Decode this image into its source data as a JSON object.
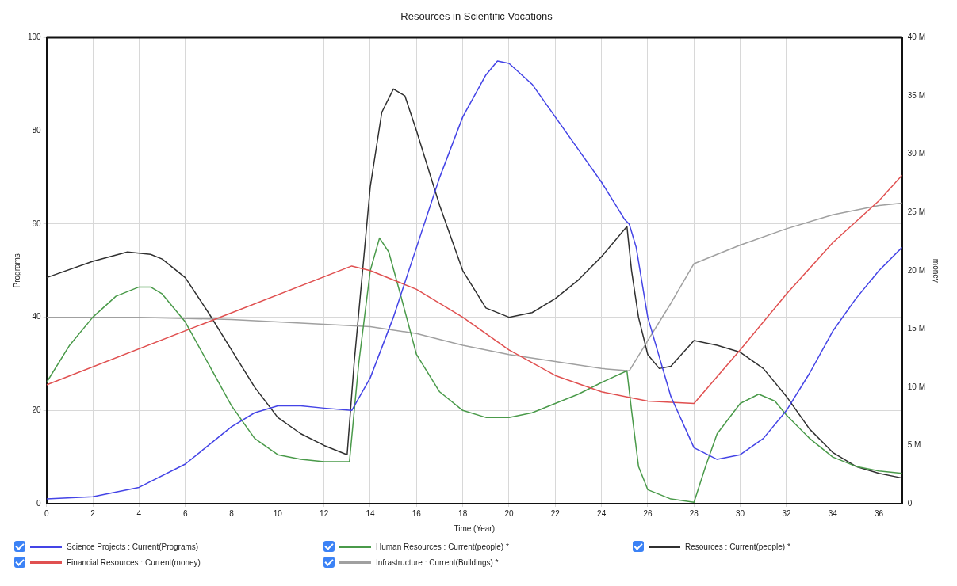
{
  "chart_data": {
    "type": "line",
    "title": "Resources in Scientific Vocations",
    "xlabel": "Time (Year)",
    "ylabel": "Programs",
    "y2label": "money",
    "xlim": [
      0,
      37
    ],
    "xticks": [
      0,
      2,
      4,
      6,
      8,
      10,
      12,
      14,
      16,
      18,
      20,
      22,
      24,
      26,
      28,
      30,
      32,
      34,
      36
    ],
    "ylim": [
      0,
      100
    ],
    "yticks": [
      0,
      20,
      40,
      60,
      80,
      100
    ],
    "y2lim": [
      0,
      40000000
    ],
    "y2ticks": [
      {
        "value": 0,
        "label": "0"
      },
      {
        "value": 5000000,
        "label": "5 M"
      },
      {
        "value": 10000000,
        "label": "10 M"
      },
      {
        "value": 15000000,
        "label": "15 M"
      },
      {
        "value": 20000000,
        "label": "20 M"
      },
      {
        "value": 25000000,
        "label": "25 M"
      },
      {
        "value": 30000000,
        "label": "30 M"
      },
      {
        "value": 35000000,
        "label": "35 M"
      },
      {
        "value": 40000000,
        "label": "40 M"
      }
    ],
    "grid": true,
    "legend": "bottom",
    "marker": "none",
    "line_style": "solid",
    "series": [
      {
        "name": "Science Projects : Current(Programs)",
        "color": "#4444e6",
        "x": [
          0,
          2,
          4,
          6,
          8,
          9,
          10,
          11,
          12,
          13.2,
          14,
          15,
          16,
          17,
          18,
          19,
          19.5,
          20,
          21,
          22,
          23,
          24,
          25,
          25.2,
          25.5,
          26,
          27,
          28,
          29,
          30,
          31,
          32,
          33,
          34,
          35,
          36,
          37
        ],
        "values": [
          1,
          1.5,
          3.5,
          8.5,
          16.5,
          19.5,
          21,
          21,
          20.5,
          20,
          27,
          40,
          55,
          70,
          83,
          92,
          95,
          94.5,
          90,
          83,
          76,
          69,
          61,
          60,
          55,
          40,
          23,
          12,
          9.5,
          10.5,
          14,
          20,
          28,
          37,
          44,
          50,
          55
        ]
      },
      {
        "name": "Financial Resources : Current(money)",
        "color": "#e05050",
        "axis": "y2",
        "x": [
          0,
          13.2,
          14,
          16,
          18,
          20,
          22,
          24,
          26,
          28,
          30,
          32,
          34,
          36,
          37
        ],
        "values": [
          10200000,
          20400000,
          20000000,
          18400000,
          16000000,
          13200000,
          11000000,
          9600000,
          8800000,
          8600000,
          13200000,
          18000000,
          22400000,
          26000000,
          28200000
        ]
      },
      {
        "name": "Human Resources : Current(people) *",
        "color": "#4a9a4a",
        "x": [
          0,
          1,
          2,
          3,
          4,
          4.5,
          5,
          6,
          7,
          8,
          9,
          10,
          11,
          12,
          13.1,
          13.5,
          14,
          14.4,
          14.8,
          15.3,
          16,
          17,
          18,
          19,
          20,
          21,
          22,
          23,
          24,
          25.1,
          25.3,
          25.6,
          26,
          27,
          28,
          28.5,
          29,
          30,
          30.8,
          31.5,
          32,
          33,
          34,
          35,
          36,
          37
        ],
        "values": [
          26,
          34,
          40,
          44.5,
          46.5,
          46.5,
          45,
          39,
          30,
          21,
          14,
          10.5,
          9.5,
          9,
          9,
          30,
          50,
          57,
          54,
          45,
          32,
          24,
          20,
          18.5,
          18.5,
          19.5,
          21.5,
          23.5,
          26,
          28.5,
          20,
          8,
          3,
          1,
          0.3,
          8,
          15,
          21.5,
          23.5,
          22,
          19,
          14,
          10,
          8,
          7,
          6.5
        ]
      },
      {
        "name": "Infrastructure : Current(Buildings) *",
        "color": "#a0a0a0",
        "x": [
          0,
          4,
          8,
          12,
          14,
          16,
          18,
          20,
          22,
          24,
          25.2,
          26,
          27,
          28,
          30,
          32,
          34,
          36,
          37
        ],
        "values": [
          40,
          40,
          39.5,
          38.5,
          38,
          36.5,
          34,
          32,
          30.5,
          29,
          28.5,
          35,
          43,
          51.5,
          55.5,
          59,
          62,
          64,
          64.5
        ]
      },
      {
        "name": "Resources : Current(people) *",
        "color": "#303030",
        "x": [
          0,
          2,
          3.5,
          4.5,
          5,
          6,
          7,
          8,
          9,
          10,
          11,
          12,
          13,
          13.3,
          14,
          14.5,
          15,
          15.5,
          16,
          17,
          18,
          19,
          20,
          21,
          22,
          23,
          24,
          25.1,
          25.3,
          25.6,
          26,
          26.5,
          27,
          28,
          29,
          30,
          31,
          32,
          33,
          34,
          35,
          36,
          37
        ],
        "values": [
          48.5,
          52,
          54,
          53.5,
          52.5,
          48.5,
          41,
          33,
          25,
          18.5,
          15,
          12.5,
          10.5,
          30,
          68,
          84,
          89,
          87.5,
          80,
          64,
          50,
          42,
          40,
          41,
          44,
          48,
          53,
          59.5,
          50,
          40,
          32,
          29,
          29.5,
          35,
          34,
          32.5,
          29,
          23,
          16,
          11,
          8,
          6.5,
          5.5
        ]
      }
    ]
  }
}
